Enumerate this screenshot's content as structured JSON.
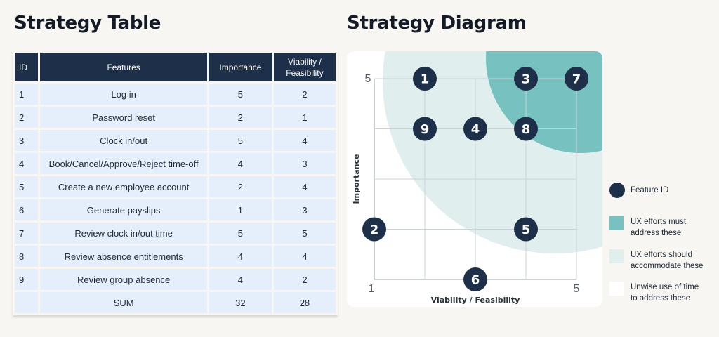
{
  "table_section": {
    "title": "Strategy Table",
    "headers": {
      "id": "ID",
      "features": "Features",
      "importance": "Importance",
      "viability_line1": "Viability /",
      "viability_line2": "Feasibility"
    },
    "rows": [
      {
        "id": "1",
        "feature": "Log in",
        "importance": "5",
        "viability": "2"
      },
      {
        "id": "2",
        "feature": "Password reset",
        "importance": "2",
        "viability": "1"
      },
      {
        "id": "3",
        "feature": "Clock in/out",
        "importance": "5",
        "viability": "4"
      },
      {
        "id": "4",
        "feature": "Book/Cancel/Approve/Reject time-off",
        "importance": "4",
        "viability": "3"
      },
      {
        "id": "5",
        "feature": "Create a new employee account",
        "importance": "2",
        "viability": "4"
      },
      {
        "id": "6",
        "feature": "Generate payslips",
        "importance": "1",
        "viability": "3"
      },
      {
        "id": "7",
        "feature": "Review clock in/out time",
        "importance": "5",
        "viability": "5"
      },
      {
        "id": "8",
        "feature": "Review absence entitlements",
        "importance": "4",
        "viability": "4"
      },
      {
        "id": "9",
        "feature": "Review group absence",
        "importance": "4",
        "viability": "2"
      }
    ],
    "sum_row": {
      "id": "",
      "label": "SUM",
      "importance": "32",
      "viability": "28"
    }
  },
  "diagram_section": {
    "title": "Strategy Diagram",
    "x_axis_label": "Viability / Feasibility",
    "y_axis_label": "Importance",
    "x_min_label": "1",
    "x_max_label": "5",
    "y_max_label": "5",
    "points": [
      {
        "id": "1",
        "viability": 2,
        "importance": 5
      },
      {
        "id": "2",
        "viability": 1,
        "importance": 2
      },
      {
        "id": "3",
        "viability": 4,
        "importance": 5
      },
      {
        "id": "4",
        "viability": 3,
        "importance": 4
      },
      {
        "id": "5",
        "viability": 4,
        "importance": 2
      },
      {
        "id": "6",
        "viability": 3,
        "importance": 1
      },
      {
        "id": "7",
        "viability": 5,
        "importance": 5
      },
      {
        "id": "8",
        "viability": 4,
        "importance": 4
      },
      {
        "id": "9",
        "viability": 2,
        "importance": 4
      }
    ]
  },
  "legend": {
    "feature_id": "Feature ID",
    "ux_must_line1": "UX efforts must",
    "ux_must_line2": "address these",
    "ux_should_line1": "UX efforts should",
    "ux_should_line2": "accommodate these",
    "unwise_line1": "Unwise use of time",
    "unwise_line2": "to address these"
  },
  "colors": {
    "dark_navy": "#1e2f4a",
    "must_teal": "#78c1c1",
    "should_light": "#e1eeee",
    "cell_blue": "#e4effb",
    "background": "#f8f6f2"
  }
}
